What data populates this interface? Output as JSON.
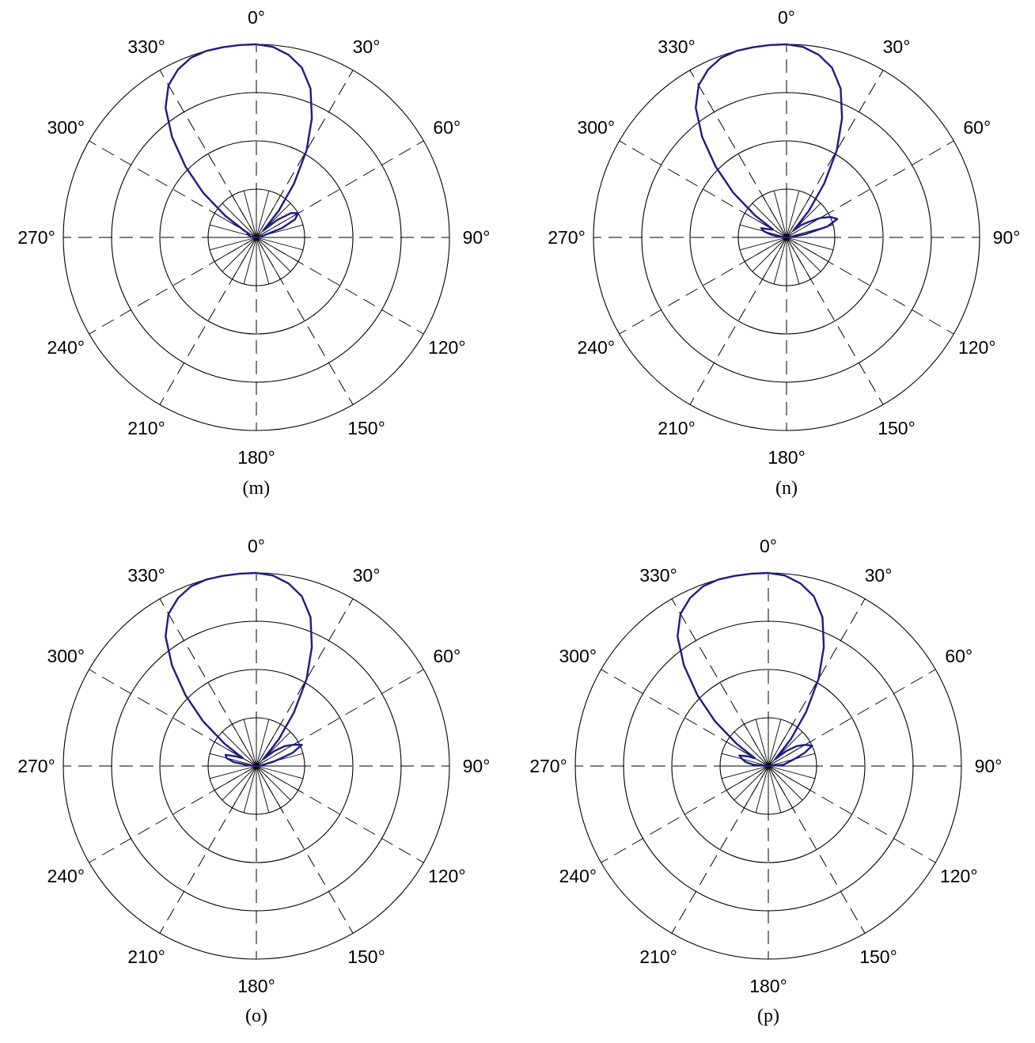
{
  "chart_data": [
    {
      "type": "polar-line",
      "caption": "(m)",
      "angle_tick_labels": [
        "0°",
        "30°",
        "60°",
        "90°",
        "120°",
        "150°",
        "180°",
        "210°",
        "240°",
        "270°",
        "300°",
        "330°"
      ],
      "radial_rings": 4,
      "grid": true,
      "line_color": "#1c1c85",
      "series": [
        {
          "theta_deg": [
            0,
            5,
            10,
            15,
            20,
            25,
            30,
            35,
            40,
            45,
            50,
            55,
            60,
            65,
            70,
            75,
            80,
            85,
            90,
            270,
            275,
            280,
            285,
            290,
            295,
            300,
            305,
            310,
            315,
            320,
            325,
            330,
            335,
            340,
            345,
            350,
            355
          ],
          "r": [
            1.0,
            0.99,
            0.96,
            0.91,
            0.82,
            0.68,
            0.52,
            0.34,
            0.18,
            0.05,
            0.14,
            0.22,
            0.25,
            0.22,
            0.14,
            0.04,
            0.02,
            0.01,
            0.0,
            0.0,
            0.01,
            0.03,
            0.04,
            0.05,
            0.04,
            0.08,
            0.2,
            0.36,
            0.52,
            0.68,
            0.82,
            0.91,
            0.96,
            0.99,
            1.0,
            1.0,
            1.0
          ]
        }
      ]
    },
    {
      "type": "polar-line",
      "caption": "(n)",
      "angle_tick_labels": [
        "0°",
        "30°",
        "60°",
        "90°",
        "120°",
        "150°",
        "180°",
        "210°",
        "240°",
        "270°",
        "300°",
        "330°"
      ],
      "radial_rings": 4,
      "grid": true,
      "line_color": "#1c1c85",
      "series": [
        {
          "theta_deg": [
            0,
            5,
            10,
            15,
            20,
            25,
            30,
            35,
            40,
            45,
            50,
            55,
            60,
            65,
            70,
            75,
            80,
            85,
            90,
            270,
            275,
            280,
            285,
            290,
            295,
            300,
            305,
            310,
            315,
            320,
            325,
            330,
            335,
            340,
            345,
            350,
            355
          ],
          "r": [
            1.0,
            0.99,
            0.96,
            0.91,
            0.82,
            0.68,
            0.52,
            0.34,
            0.18,
            0.05,
            0.1,
            0.14,
            0.2,
            0.25,
            0.28,
            0.22,
            0.1,
            0.02,
            0.0,
            0.0,
            0.03,
            0.08,
            0.12,
            0.14,
            0.1,
            0.08,
            0.2,
            0.36,
            0.52,
            0.68,
            0.82,
            0.91,
            0.96,
            0.99,
            1.0,
            1.0,
            1.0
          ]
        }
      ]
    },
    {
      "type": "polar-line",
      "caption": "(o)",
      "angle_tick_labels": [
        "0°",
        "30°",
        "60°",
        "90°",
        "120°",
        "150°",
        "180°",
        "210°",
        "240°",
        "270°",
        "300°",
        "330°"
      ],
      "radial_rings": 4,
      "grid": true,
      "line_color": "#1c1c85",
      "series": [
        {
          "theta_deg": [
            0,
            5,
            10,
            15,
            20,
            25,
            30,
            35,
            40,
            45,
            50,
            55,
            60,
            65,
            70,
            75,
            80,
            85,
            90,
            270,
            275,
            280,
            285,
            290,
            295,
            300,
            305,
            310,
            315,
            320,
            325,
            330,
            335,
            340,
            345,
            350,
            355
          ],
          "r": [
            1.0,
            0.99,
            0.96,
            0.91,
            0.82,
            0.68,
            0.52,
            0.34,
            0.18,
            0.05,
            0.12,
            0.18,
            0.22,
            0.26,
            0.2,
            0.1,
            0.04,
            0.02,
            0.0,
            0.0,
            0.04,
            0.12,
            0.16,
            0.17,
            0.12,
            0.08,
            0.2,
            0.36,
            0.52,
            0.68,
            0.82,
            0.91,
            0.96,
            0.99,
            1.0,
            1.0,
            1.0
          ]
        }
      ]
    },
    {
      "type": "polar-line",
      "caption": "(p)",
      "angle_tick_labels": [
        "0°",
        "30°",
        "60°",
        "90°",
        "120°",
        "150°",
        "180°",
        "210°",
        "240°",
        "270°",
        "300°",
        "330°"
      ],
      "radial_rings": 4,
      "grid": true,
      "line_color": "#1c1c85",
      "series": [
        {
          "theta_deg": [
            0,
            5,
            10,
            15,
            20,
            25,
            30,
            35,
            40,
            45,
            50,
            55,
            60,
            65,
            70,
            75,
            80,
            85,
            90,
            270,
            275,
            280,
            285,
            290,
            295,
            300,
            305,
            310,
            315,
            320,
            325,
            330,
            335,
            340,
            345,
            350,
            355
          ],
          "r": [
            1.0,
            0.99,
            0.96,
            0.91,
            0.82,
            0.68,
            0.52,
            0.34,
            0.18,
            0.05,
            0.12,
            0.18,
            0.22,
            0.25,
            0.2,
            0.14,
            0.1,
            0.08,
            0.0,
            0.0,
            0.08,
            0.12,
            0.14,
            0.16,
            0.12,
            0.08,
            0.2,
            0.36,
            0.52,
            0.68,
            0.82,
            0.91,
            0.96,
            0.99,
            1.0,
            1.0,
            1.0
          ]
        }
      ]
    }
  ]
}
